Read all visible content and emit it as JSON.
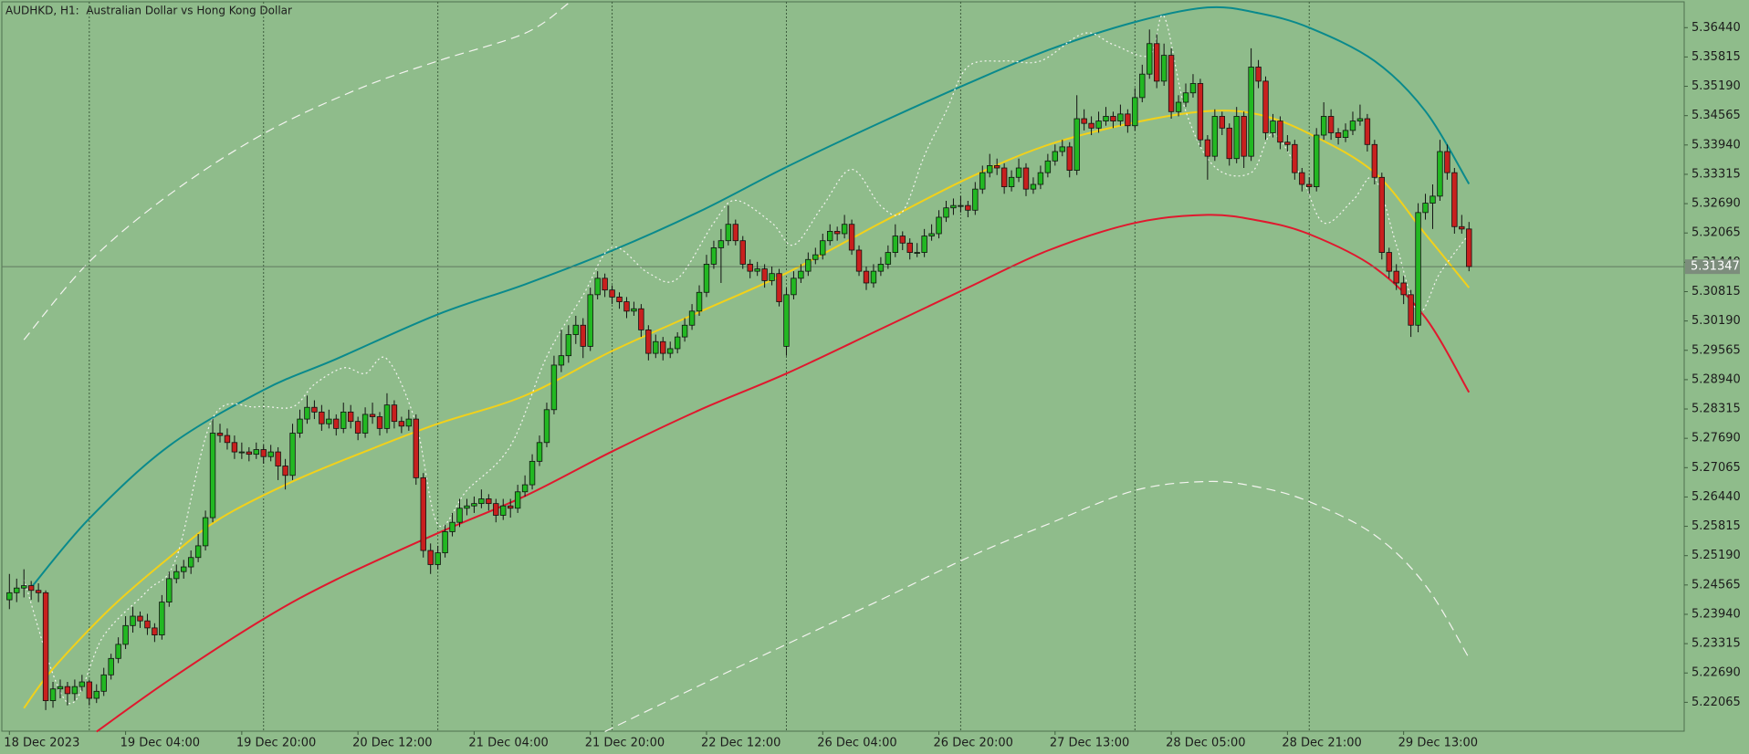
{
  "chart_data": {
    "type": "candlestick",
    "title": "AUDHKD, H1:  Australian Dollar vs Hong Kong Dollar",
    "up_color": "#22b822",
    "down_color": "#c8201e",
    "ylim": [
      5.2145,
      5.3699
    ],
    "yticks": [
      {
        "value": 5.3644,
        "label": "5.36440"
      },
      5.35815,
      {
        "value": 5.3519,
        "label": "5.35190"
      },
      5.34565,
      {
        "value": 5.3394,
        "label": "5.33940"
      },
      5.33315,
      {
        "value": 5.3269,
        "label": "5.32690"
      },
      5.32065,
      {
        "value": 5.3144,
        "label": "5.31440"
      },
      5.30815,
      {
        "value": 5.3019,
        "label": "5.30190"
      },
      5.29565,
      {
        "value": 5.2894,
        "label": "5.28940"
      },
      5.28315,
      {
        "value": 5.2769,
        "label": "5.27690"
      },
      5.27065,
      {
        "value": 5.2644,
        "label": "5.26440"
      },
      5.25815,
      {
        "value": 5.2519,
        "label": "5.25190"
      },
      5.24565,
      {
        "value": 5.2394,
        "label": "5.23940"
      },
      5.23315,
      {
        "value": 5.2269,
        "label": "5.22690"
      },
      5.22065
    ],
    "current_price": 5.31347,
    "categories": [
      "18 Dec 2023",
      null,
      null,
      null,
      null,
      null,
      null,
      null,
      null,
      null,
      null,
      null,
      null,
      null,
      null,
      null,
      "19 Dec 04:00",
      null,
      null,
      null,
      null,
      null,
      null,
      null,
      null,
      null,
      null,
      null,
      null,
      null,
      null,
      null,
      "19 Dec 20:00",
      null,
      null,
      null,
      null,
      null,
      null,
      null,
      null,
      null,
      null,
      null,
      null,
      null,
      null,
      null,
      "20 Dec 12:00",
      null,
      null,
      null,
      null,
      null,
      null,
      null,
      null,
      null,
      null,
      null,
      null,
      null,
      null,
      null,
      "21 Dec 04:00",
      null,
      null,
      null,
      null,
      null,
      null,
      null,
      null,
      null,
      null,
      null,
      null,
      null,
      null,
      null,
      "21 Dec 20:00",
      null,
      null,
      null,
      null,
      null,
      null,
      null,
      null,
      null,
      null,
      null,
      null,
      null,
      null,
      null,
      "22 Dec 12:00",
      null,
      null,
      null,
      null,
      null,
      null,
      null,
      null,
      null,
      null,
      null,
      null,
      null,
      null,
      null,
      "26 Dec 04:00",
      null,
      null,
      null,
      null,
      null,
      null,
      null,
      null,
      null,
      null,
      null,
      null,
      null,
      null,
      null,
      "26 Dec 20:00",
      null,
      null,
      null,
      null,
      null,
      null,
      null,
      null,
      null,
      null,
      null,
      null,
      null,
      null,
      null,
      "27 Dec 13:00",
      null,
      null,
      null,
      null,
      null,
      null,
      null,
      null,
      null,
      null,
      null,
      null,
      null,
      null,
      null,
      "28 Dec 05:00",
      null,
      null,
      null,
      null,
      null,
      null,
      null,
      null,
      null,
      null,
      null,
      null,
      null,
      null,
      null,
      "28 Dec 21:00",
      null,
      null,
      null,
      null,
      null,
      null,
      null,
      null,
      null,
      null,
      null,
      null,
      null,
      null,
      null,
      "29 Dec 13:00",
      null,
      null,
      null,
      null,
      null,
      null,
      null,
      null,
      null
    ],
    "open": [
      5.2425,
      5.244,
      5.245,
      5.2455,
      5.2445,
      5.244,
      5.221,
      5.2235,
      5.224,
      5.2225,
      5.224,
      5.225,
      5.2215,
      5.223,
      5.2265,
      5.23,
      5.233,
      5.237,
      5.239,
      5.238,
      5.2365,
      5.235,
      5.242,
      5.247,
      5.2485,
      5.2495,
      5.2515,
      5.254,
      5.26,
      5.278,
      5.2775,
      5.276,
      5.274,
      5.274,
      5.2735,
      5.2745,
      5.273,
      5.274,
      5.271,
      5.269,
      5.278,
      5.281,
      5.2835,
      5.2825,
      5.28,
      5.281,
      5.279,
      5.2825,
      5.2805,
      5.278,
      5.282,
      5.2815,
      5.279,
      5.284,
      5.2805,
      5.2795,
      5.281,
      5.2685,
      5.253,
      5.25,
      5.2525,
      5.257,
      5.259,
      5.262,
      5.2625,
      5.263,
      5.264,
      5.263,
      5.2605,
      5.2625,
      5.262,
      5.2655,
      5.267,
      5.272,
      5.276,
      5.283,
      5.2925,
      5.2945,
      5.299,
      5.301,
      5.2965,
      5.3075,
      5.311,
      5.3085,
      5.307,
      5.306,
      5.304,
      5.3045,
      5.3,
      5.295,
      5.2975,
      5.295,
      5.296,
      5.2985,
      5.301,
      5.304,
      5.308,
      5.314,
      5.3175,
      5.319,
      5.3225,
      5.319,
      5.314,
      5.3125,
      5.313,
      5.3105,
      5.312,
      5.2965,
      5.3075,
      5.311,
      5.3125,
      5.315,
      5.316,
      5.319,
      5.321,
      5.3205,
      5.3225,
      5.317,
      5.3125,
      5.31,
      5.3125,
      5.314,
      5.3165,
      5.32,
      5.3185,
      5.3165,
      5.3165,
      5.32,
      5.3205,
      5.324,
      5.326,
      5.3265,
      5.3265,
      5.3255,
      5.33,
      5.3335,
      5.335,
      5.3345,
      5.3305,
      5.3325,
      5.3345,
      5.33,
      5.331,
      5.3335,
      5.336,
      5.338,
      5.339,
      5.334,
      5.345,
      5.344,
      5.343,
      5.3445,
      5.3455,
      5.3445,
      5.346,
      5.3435,
      5.3495,
      5.3545,
      5.361,
      5.353,
      5.3585,
      5.3465,
      5.3485,
      5.3505,
      5.3525,
      5.3405,
      5.337,
      5.3455,
      5.343,
      5.3365,
      5.3455,
      5.337,
      5.356,
      5.353,
      5.342,
      5.3445,
      5.34,
      5.3395,
      5.3335,
      5.331,
      5.3305,
      5.3415,
      5.3455,
      5.342,
      5.341,
      5.3425,
      5.3445,
      5.345,
      5.3395,
      5.3325,
      5.3165,
      5.3125,
      5.31,
      5.3075,
      5.301,
      5.325,
      5.327,
      5.3285,
      5.338,
      5.3335,
      5.322,
      5.3215
    ],
    "high": [
      5.248,
      5.247,
      5.249,
      5.2465,
      5.246,
      5.2445,
      5.225,
      5.2255,
      5.225,
      5.2255,
      5.2265,
      5.2255,
      5.2245,
      5.228,
      5.231,
      5.2345,
      5.239,
      5.241,
      5.24,
      5.2395,
      5.2375,
      5.2435,
      5.2485,
      5.25,
      5.251,
      5.253,
      5.2565,
      5.2615,
      5.281,
      5.28,
      5.279,
      5.2775,
      5.276,
      5.275,
      5.276,
      5.2755,
      5.2755,
      5.275,
      5.2725,
      5.28,
      5.283,
      5.286,
      5.285,
      5.284,
      5.283,
      5.282,
      5.2845,
      5.284,
      5.2815,
      5.2835,
      5.2845,
      5.2825,
      5.2865,
      5.285,
      5.2815,
      5.283,
      5.282,
      5.2695,
      5.2545,
      5.254,
      5.2585,
      5.261,
      5.264,
      5.264,
      5.2645,
      5.266,
      5.265,
      5.264,
      5.264,
      5.264,
      5.267,
      5.269,
      5.2735,
      5.2775,
      5.2845,
      5.2945,
      5.3,
      5.301,
      5.303,
      5.3025,
      5.309,
      5.3125,
      5.312,
      5.3095,
      5.308,
      5.307,
      5.306,
      5.3055,
      5.301,
      5.299,
      5.2985,
      5.2975,
      5.2995,
      5.3025,
      5.3055,
      5.3095,
      5.316,
      5.319,
      5.3215,
      5.3265,
      5.3235,
      5.32,
      5.315,
      5.3145,
      5.314,
      5.3135,
      5.313,
      5.309,
      5.3125,
      5.314,
      5.3165,
      5.3175,
      5.3205,
      5.3225,
      5.322,
      5.3245,
      5.3235,
      5.318,
      5.3135,
      5.314,
      5.3155,
      5.318,
      5.3225,
      5.321,
      5.3195,
      5.3185,
      5.3215,
      5.3225,
      5.3255,
      5.3275,
      5.328,
      5.3285,
      5.3275,
      5.3315,
      5.335,
      5.3375,
      5.3365,
      5.3355,
      5.334,
      5.3365,
      5.3355,
      5.3325,
      5.335,
      5.3375,
      5.3395,
      5.3405,
      5.34,
      5.35,
      5.347,
      5.3455,
      5.3465,
      5.3475,
      5.3465,
      5.348,
      5.347,
      5.3515,
      5.3565,
      5.364,
      5.363,
      5.361,
      5.36,
      5.35,
      5.3525,
      5.3545,
      5.3535,
      5.3415,
      5.347,
      5.3465,
      5.344,
      5.3475,
      5.3465,
      5.36,
      5.3575,
      5.354,
      5.346,
      5.3455,
      5.3415,
      5.3405,
      5.3345,
      5.3325,
      5.343,
      5.3485,
      5.347,
      5.343,
      5.344,
      5.3465,
      5.348,
      5.346,
      5.3405,
      5.3335,
      5.3175,
      5.314,
      5.3115,
      5.3085,
      5.327,
      5.329,
      5.331,
      5.3405,
      5.3395,
      5.3345,
      5.3245,
      5.323
    ],
    "low": [
      5.2405,
      5.242,
      5.243,
      5.2425,
      5.242,
      5.219,
      5.2195,
      5.2215,
      5.22,
      5.221,
      5.223,
      5.22,
      5.2205,
      5.222,
      5.2255,
      5.229,
      5.232,
      5.2355,
      5.2365,
      5.235,
      5.2335,
      5.234,
      5.241,
      5.246,
      5.247,
      5.248,
      5.2505,
      5.253,
      5.259,
      5.276,
      5.2745,
      5.2725,
      5.2725,
      5.272,
      5.2725,
      5.2715,
      5.272,
      5.268,
      5.266,
      5.268,
      5.277,
      5.28,
      5.281,
      5.2785,
      5.279,
      5.2775,
      5.278,
      5.279,
      5.2765,
      5.277,
      5.28,
      5.2775,
      5.278,
      5.279,
      5.278,
      5.2785,
      5.267,
      5.2515,
      5.248,
      5.249,
      5.2515,
      5.256,
      5.258,
      5.2605,
      5.261,
      5.262,
      5.2615,
      5.259,
      5.2595,
      5.26,
      5.261,
      5.2645,
      5.266,
      5.271,
      5.275,
      5.282,
      5.291,
      5.293,
      5.297,
      5.294,
      5.2955,
      5.3065,
      5.307,
      5.3055,
      5.3045,
      5.3025,
      5.303,
      5.2985,
      5.2935,
      5.294,
      5.2935,
      5.294,
      5.295,
      5.2975,
      5.3,
      5.303,
      5.307,
      5.313,
      5.31,
      5.318,
      5.318,
      5.313,
      5.311,
      5.3115,
      5.309,
      5.3095,
      5.305,
      5.2945,
      5.3065,
      5.31,
      5.3115,
      5.314,
      5.315,
      5.318,
      5.319,
      5.3195,
      5.316,
      5.3115,
      5.3085,
      5.309,
      5.3115,
      5.313,
      5.3155,
      5.317,
      5.315,
      5.3155,
      5.3155,
      5.319,
      5.3195,
      5.323,
      5.3245,
      5.325,
      5.324,
      5.3245,
      5.329,
      5.3325,
      5.333,
      5.329,
      5.3295,
      5.3315,
      5.3285,
      5.329,
      5.33,
      5.3325,
      5.335,
      5.337,
      5.3325,
      5.333,
      5.3425,
      5.3415,
      5.342,
      5.3435,
      5.343,
      5.3435,
      5.342,
      5.3425,
      5.3485,
      5.3535,
      5.3515,
      5.352,
      5.345,
      5.3455,
      5.3475,
      5.3495,
      5.339,
      5.332,
      5.336,
      5.3415,
      5.335,
      5.3355,
      5.3345,
      5.336,
      5.3515,
      5.3405,
      5.341,
      5.3385,
      5.338,
      5.332,
      5.3295,
      5.329,
      5.3295,
      5.3405,
      5.3405,
      5.3395,
      5.34,
      5.3415,
      5.3435,
      5.338,
      5.331,
      5.315,
      5.311,
      5.3085,
      5.3055,
      5.2985,
      5.2995,
      5.3235,
      5.3215,
      5.3275,
      5.332,
      5.3205,
      5.3205,
      5.3125
    ],
    "close": [
      5.244,
      5.245,
      5.2455,
      5.2445,
      5.244,
      5.221,
      5.2235,
      5.224,
      5.2225,
      5.224,
      5.225,
      5.2215,
      5.223,
      5.2265,
      5.23,
      5.233,
      5.237,
      5.239,
      5.238,
      5.2365,
      5.235,
      5.242,
      5.247,
      5.2485,
      5.2495,
      5.2515,
      5.254,
      5.26,
      5.278,
      5.2775,
      5.276,
      5.274,
      5.274,
      5.2735,
      5.2745,
      5.273,
      5.274,
      5.271,
      5.269,
      5.278,
      5.281,
      5.2835,
      5.2825,
      5.28,
      5.281,
      5.279,
      5.2825,
      5.2805,
      5.278,
      5.282,
      5.2815,
      5.279,
      5.284,
      5.2805,
      5.2795,
      5.281,
      5.2685,
      5.253,
      5.25,
      5.2525,
      5.257,
      5.259,
      5.262,
      5.2625,
      5.263,
      5.264,
      5.263,
      5.2605,
      5.2625,
      5.262,
      5.2655,
      5.267,
      5.272,
      5.276,
      5.283,
      5.2925,
      5.2945,
      5.299,
      5.301,
      5.2965,
      5.3075,
      5.311,
      5.3085,
      5.307,
      5.306,
      5.304,
      5.3045,
      5.3,
      5.295,
      5.2975,
      5.295,
      5.296,
      5.2985,
      5.301,
      5.304,
      5.308,
      5.314,
      5.3175,
      5.319,
      5.3225,
      5.319,
      5.314,
      5.3125,
      5.313,
      5.3105,
      5.312,
      5.306,
      5.3075,
      5.311,
      5.3125,
      5.315,
      5.316,
      5.319,
      5.321,
      5.3205,
      5.3225,
      5.317,
      5.3125,
      5.31,
      5.3125,
      5.314,
      5.3165,
      5.32,
      5.3185,
      5.3165,
      5.3165,
      5.32,
      5.3205,
      5.324,
      5.326,
      5.3265,
      5.3265,
      5.3255,
      5.33,
      5.3335,
      5.335,
      5.3345,
      5.3305,
      5.3325,
      5.3345,
      5.33,
      5.331,
      5.3335,
      5.336,
      5.338,
      5.339,
      5.334,
      5.345,
      5.344,
      5.343,
      5.3445,
      5.3455,
      5.3445,
      5.346,
      5.3435,
      5.3495,
      5.3545,
      5.361,
      5.353,
      5.3585,
      5.3465,
      5.3485,
      5.3505,
      5.3525,
      5.3405,
      5.337,
      5.3455,
      5.343,
      5.3365,
      5.3455,
      5.337,
      5.356,
      5.353,
      5.342,
      5.3445,
      5.34,
      5.3395,
      5.3335,
      5.331,
      5.3305,
      5.3415,
      5.3455,
      5.342,
      5.341,
      5.3425,
      5.3445,
      5.345,
      5.3395,
      5.3325,
      5.3165,
      5.3125,
      5.31,
      5.3075,
      5.301,
      5.325,
      5.327,
      5.3285,
      5.338,
      5.3335,
      5.322,
      5.3215,
      5.3135
    ],
    "overlays": [
      {
        "color": "#0a8a8c",
        "style": "solid",
        "x": [
          3,
          11,
          22,
          35,
          45,
          59,
          71,
          83,
          95,
          107,
          120,
          132,
          143,
          155,
          165,
          172,
          179,
          188,
          195,
          201
        ],
        "values": [
          5.2451,
          5.2598,
          5.2753,
          5.2872,
          5.2938,
          5.3033,
          5.3097,
          5.3169,
          5.3252,
          5.3347,
          5.3442,
          5.3525,
          5.3596,
          5.3656,
          5.3687,
          5.3675,
          5.3644,
          5.3573,
          5.3466,
          5.3311
        ]
      },
      {
        "color": "#f2d11a",
        "style": "solid",
        "x": [
          2,
          6,
          14,
          22,
          29,
          39,
          49,
          59,
          71,
          83,
          95,
          107,
          120,
          132,
          143,
          155,
          165,
          172,
          179,
          188,
          195,
          201
        ],
        "values": [
          5.2194,
          5.2278,
          5.2408,
          5.2515,
          5.2598,
          5.2677,
          5.2741,
          5.28,
          5.286,
          5.2955,
          5.3038,
          5.3121,
          5.3228,
          5.3323,
          5.3394,
          5.3442,
          5.3466,
          5.3459,
          5.3418,
          5.3335,
          5.3204,
          5.309
        ]
      },
      {
        "color": "#e0182e",
        "style": "solid",
        "x": [
          12,
          22,
          35,
          45,
          59,
          71,
          83,
          95,
          107,
          120,
          132,
          143,
          155,
          165,
          172,
          179,
          188,
          195,
          201
        ],
        "values": [
          5.2144,
          5.2254,
          5.2384,
          5.2468,
          5.2567,
          5.2646,
          5.2741,
          5.2829,
          5.2907,
          5.3002,
          5.309,
          5.3169,
          5.3228,
          5.3245,
          5.3233,
          5.3204,
          5.3133,
          5.3026,
          5.2867
        ]
      },
      {
        "color": "#f4f4f0",
        "style": "dashed",
        "x": [
          2,
          11,
          22,
          35,
          48,
          59,
          71,
          77
        ],
        "values": [
          5.2979,
          5.3145,
          5.3288,
          5.3418,
          5.3513,
          5.3573,
          5.3632,
          5.3696
        ]
      },
      {
        "color": "#f4f4f0",
        "style": "dashed",
        "x": [
          82,
          95,
          107,
          120,
          132,
          143,
          155,
          165,
          172,
          179,
          188,
          195,
          201
        ],
        "values": [
          5.2144,
          5.2242,
          5.233,
          5.2425,
          5.2515,
          5.2586,
          5.2658,
          5.2677,
          5.2665,
          5.2634,
          5.2563,
          5.2456,
          5.2301
        ]
      },
      {
        "color": "#f4f4f0",
        "style": "dotted",
        "x": [
          2,
          8,
          13,
          19,
          23,
          28,
          34,
          39,
          42,
          46,
          49,
          52,
          56,
          59,
          63,
          69,
          74,
          79,
          83,
          88,
          92,
          97,
          100,
          105,
          108,
          112,
          116,
          120,
          123,
          126,
          129,
          132,
          137,
          142,
          148,
          152,
          157,
          159,
          162,
          166,
          171,
          174,
          178,
          181,
          185,
          188,
          191,
          194,
          197,
          201
        ],
        "values": [
          5.2468,
          5.2206,
          5.2349,
          5.2444,
          5.2515,
          5.2812,
          5.2836,
          5.2836,
          5.2884,
          5.2919,
          5.2907,
          5.2938,
          5.28,
          5.2586,
          5.2658,
          5.2753,
          5.2943,
          5.3074,
          5.3176,
          5.3121,
          5.3109,
          5.3228,
          5.3276,
          5.3228,
          5.3181,
          5.3264,
          5.3342,
          5.3264,
          5.3252,
          5.3371,
          5.3466,
          5.3561,
          5.3573,
          5.3573,
          5.3632,
          5.3608,
          5.3585,
          5.3668,
          5.3466,
          5.3347,
          5.3335,
          5.3418,
          5.3323,
          5.3228,
          5.3276,
          5.3323,
          5.3181,
          5.3038,
          5.3121,
          5.3204
        ]
      }
    ]
  }
}
